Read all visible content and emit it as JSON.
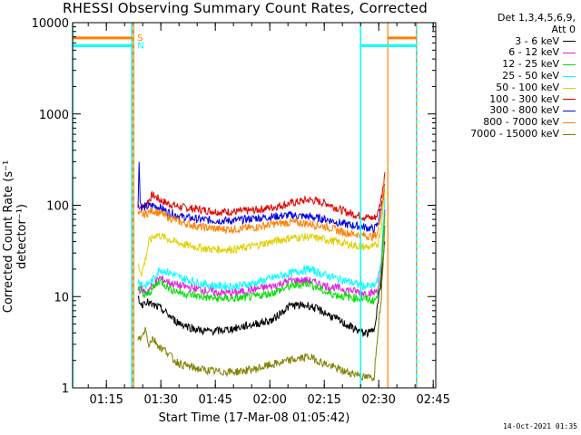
{
  "title": "RHESSI Observing Summary Count Rates, Corrected",
  "x_label": "Start Time (17-Mar-08 01:05:42)",
  "y_label": "Corrected Count Rate (s⁻¹ detector⁻¹)",
  "timestamp": "14-Oct-2021 01:35",
  "legend": {
    "detectors": "Det 1,3,4,5,6,9,",
    "attenuator": "Att 0",
    "entries": [
      {
        "label": "3 - 6 keV",
        "color": "#000000"
      },
      {
        "label": "6 - 12 keV",
        "color": "#e020e0"
      },
      {
        "label": "12 - 25 keV",
        "color": "#00e000"
      },
      {
        "label": "25 - 50 keV",
        "color": "#00ffff"
      },
      {
        "label": "50 - 100 keV",
        "color": "#e0d000"
      },
      {
        "label": "100 - 300 keV",
        "color": "#e00000"
      },
      {
        "label": "300 - 800 keV",
        "color": "#0000e0"
      },
      {
        "label": "800 - 7000 keV",
        "color": "#ff8000"
      },
      {
        "label": "7000 - 15000 keV",
        "color": "#808000"
      }
    ]
  },
  "flags": {
    "saa_label": "S",
    "night_label": "N",
    "saa_color": "#ff8000",
    "night_color": "#00ffff"
  },
  "chart_data": {
    "type": "line",
    "y_scale": "log",
    "ylim": [
      1,
      10000
    ],
    "xlim_minutes": [
      0,
      100
    ],
    "x_ticks": [
      {
        "label": "01:15",
        "minute": 9.3
      },
      {
        "label": "01:30",
        "minute": 24.3
      },
      {
        "label": "01:45",
        "minute": 39.3
      },
      {
        "label": "02:00",
        "minute": 54.3
      },
      {
        "label": "02:15",
        "minute": 69.3
      },
      {
        "label": "02:30",
        "minute": 84.3
      },
      {
        "label": "02:45",
        "minute": 99.3
      }
    ],
    "y_ticks": [
      {
        "label": "1",
        "value": 1
      },
      {
        "label": "10",
        "value": 10
      },
      {
        "label": "100",
        "value": 100
      },
      {
        "label": "1000",
        "value": 1000
      },
      {
        "label": "10000",
        "value": 10000
      }
    ],
    "night_lines_minutes": [
      0.0,
      16.3,
      79.3,
      94.7
    ],
    "saa_lines_minutes": [
      16.8,
      86.8
    ],
    "saa_bar_value": 6800,
    "night_bar_value": 5600,
    "saa_intervals_minutes": [
      [
        0.0,
        16.3
      ],
      [
        86.8,
        94.7
      ]
    ],
    "night_intervals_minutes": [
      [
        0.0,
        16.3
      ],
      [
        79.3,
        94.7
      ]
    ],
    "series": [
      {
        "name": "100 - 300 keV",
        "color": "#e00000",
        "x": [
          18,
          19,
          20,
          22,
          24,
          26,
          30,
          35,
          40,
          45,
          50,
          55,
          60,
          65,
          70,
          75,
          80,
          83,
          84,
          85,
          86
        ],
        "y": [
          100,
          95,
          100,
          130,
          115,
          105,
          95,
          90,
          85,
          85,
          88,
          95,
          105,
          115,
          105,
          85,
          75,
          72,
          80,
          120,
          230
        ]
      },
      {
        "name": "300 - 800 keV",
        "color": "#0000e0",
        "x": [
          18,
          18.3,
          18.6,
          19,
          20,
          22,
          24,
          26,
          30,
          35,
          40,
          45,
          50,
          55,
          60,
          65,
          70,
          75,
          80,
          83,
          84,
          85,
          86
        ],
        "y": [
          90,
          330,
          110,
          95,
          95,
          100,
          95,
          85,
          75,
          70,
          68,
          68,
          72,
          75,
          78,
          75,
          70,
          62,
          58,
          55,
          62,
          95,
          170
        ]
      },
      {
        "name": "800 - 7000 keV",
        "color": "#ff8000",
        "x": [
          18,
          19,
          20,
          22,
          24,
          26,
          30,
          35,
          40,
          45,
          50,
          55,
          60,
          65,
          70,
          75,
          80,
          83,
          84,
          85,
          86
        ],
        "y": [
          80,
          78,
          80,
          88,
          82,
          75,
          65,
          58,
          55,
          55,
          57,
          62,
          65,
          63,
          58,
          50,
          47,
          45,
          50,
          85,
          200
        ]
      },
      {
        "name": "50 - 100 keV",
        "color": "#e0d000",
        "x": [
          18,
          19,
          20,
          21,
          23,
          25,
          28,
          32,
          38,
          45,
          50,
          55,
          60,
          65,
          70,
          75,
          80,
          83,
          84,
          85,
          86
        ],
        "y": [
          22,
          18,
          25,
          40,
          48,
          45,
          40,
          36,
          33,
          33,
          36,
          40,
          44,
          45,
          42,
          38,
          35,
          35,
          38,
          60,
          150
        ]
      },
      {
        "name": "25 - 50 keV",
        "color": "#00ffff",
        "x": [
          18,
          19,
          20,
          22,
          24,
          27,
          30,
          35,
          40,
          45,
          50,
          55,
          60,
          65,
          70,
          75,
          80,
          83,
          84,
          85,
          86
        ],
        "y": [
          15,
          14,
          13,
          15,
          20,
          18,
          16,
          14,
          13,
          13,
          14,
          16,
          18,
          20,
          17,
          15,
          13,
          13,
          15,
          25,
          120
        ]
      },
      {
        "name": "6 - 12 keV",
        "color": "#e020e0",
        "x": [
          18,
          19,
          20,
          22,
          24,
          27,
          30,
          35,
          40,
          45,
          50,
          55,
          60,
          65,
          70,
          75,
          80,
          83,
          84,
          85,
          86
        ],
        "y": [
          12,
          12,
          11,
          13,
          16,
          14,
          13,
          12,
          11,
          11,
          12,
          13,
          15,
          15,
          13,
          12,
          11,
          11,
          12,
          20,
          90
        ]
      },
      {
        "name": "12 - 25 keV",
        "color": "#00e000",
        "x": [
          18,
          19,
          20,
          22,
          24,
          27,
          30,
          35,
          40,
          45,
          50,
          55,
          60,
          65,
          70,
          75,
          80,
          83,
          84,
          85,
          86
        ],
        "y": [
          13,
          11,
          10,
          12,
          15,
          12,
          11,
          10,
          9.5,
          9.5,
          10,
          11,
          13,
          14,
          11,
          10,
          9.5,
          9,
          10,
          18,
          80
        ]
      },
      {
        "name": "3 - 6 keV",
        "color": "#000000",
        "x": [
          18,
          19,
          20,
          22,
          24,
          26,
          28,
          30,
          33,
          36,
          40,
          45,
          50,
          55,
          58,
          60,
          65,
          70,
          75,
          80,
          82,
          83,
          84,
          85,
          86
        ],
        "y": [
          10,
          8,
          9,
          8,
          7.5,
          6.5,
          5.5,
          5,
          4.5,
          4.2,
          4.2,
          4.5,
          5,
          5.5,
          7,
          8,
          8,
          6.5,
          5,
          4,
          4,
          4.5,
          8,
          15,
          40
        ]
      },
      {
        "name": "7000 - 15000 keV",
        "color": "#808000",
        "x": [
          18,
          19,
          20,
          21,
          22,
          24,
          26,
          28,
          30,
          35,
          40,
          45,
          50,
          55,
          60,
          65,
          70,
          75,
          79,
          80,
          83,
          84,
          85,
          86
        ],
        "y": [
          3.5,
          3.5,
          4.5,
          3,
          3.5,
          2.8,
          2.5,
          2,
          1.8,
          1.6,
          1.5,
          1.5,
          1.6,
          1.8,
          2,
          2.2,
          1.8,
          1.5,
          1.4,
          1.3,
          1.3,
          4,
          10,
          60
        ]
      }
    ]
  }
}
